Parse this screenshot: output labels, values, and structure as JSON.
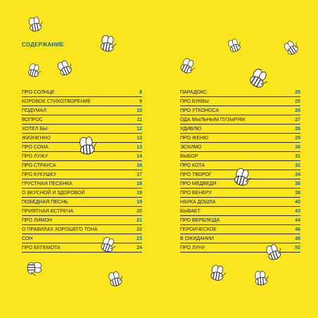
{
  "heading": "СОДЕРЖАНИЕ",
  "colors": {
    "background": "#fbe51f",
    "accent": "#1a6b80",
    "text": "#222222"
  },
  "toc_left": [
    {
      "title": "ПРО СОЛНЦЕ",
      "page": "8"
    },
    {
      "title": "КОРОВОЕ СТИХОТВОРЕНИЕ",
      "page": "9"
    },
    {
      "title": "ПОДУМАЛ",
      "page": "10"
    },
    {
      "title": "ВОПРОС",
      "page": "11"
    },
    {
      "title": "ХОТЕЛ БЫ",
      "page": "12"
    },
    {
      "title": "ЖИЗНЕННО",
      "page": "13"
    },
    {
      "title": "ПРО СОМА",
      "page": "13"
    },
    {
      "title": "ПРО ЛУЖУ",
      "page": "14"
    },
    {
      "title": "ПРО СТРАУСА",
      "page": "16"
    },
    {
      "title": "ПРО КУКУШКУ",
      "page": "17"
    },
    {
      "title": "ГРУСТНАЯ ПЕСЕНКА",
      "page": "18"
    },
    {
      "title": "О ВКУСНОЙ И ЗДОРОВОЙ",
      "page": "19"
    },
    {
      "title": "ПОБЕДНАЯ ПЕСНЬ",
      "page": "19"
    },
    {
      "title": "ПРИЯТНАЯ ВСТРЕЧА",
      "page": "20"
    },
    {
      "title": "ПРО ЛИМОН",
      "page": "21"
    },
    {
      "title": "О ПРАВИЛАХ ХОРОШЕГО ТОНА",
      "page": "22"
    },
    {
      "title": "СОН",
      "page": "23"
    },
    {
      "title": "ПРО БЕГЕМОТА",
      "page": "24"
    }
  ],
  "toc_right": [
    {
      "title": "ПАРАДОКС",
      "page": "25"
    },
    {
      "title": "ПРО БУКВЫ",
      "page": "25"
    },
    {
      "title": "ПРО УТКОНОСА",
      "page": "26"
    },
    {
      "title": "ОДА МЫЛЬНЫМ ПУЗЫРЯМ",
      "page": "27"
    },
    {
      "title": "УДИВЛЮ",
      "page": "28"
    },
    {
      "title": "ПРО ЖЕНЮ",
      "page": "29"
    },
    {
      "title": "ЭСКИМО",
      "page": "30"
    },
    {
      "title": "ВЫБОР",
      "page": "31"
    },
    {
      "title": "ПРО КОТА",
      "page": "32"
    },
    {
      "title": "ПРО ТВОРОГ",
      "page": "34"
    },
    {
      "title": "ПРО МЕДВЕДЯ",
      "page": "36"
    },
    {
      "title": "ПРО ВЕНЕРУ",
      "page": "38"
    },
    {
      "title": "НАУКА ДОШЛА",
      "page": "40"
    },
    {
      "title": "БЫВАЕТ",
      "page": "43"
    },
    {
      "title": "ПРО ВЕРБЛЮДА",
      "page": "44"
    },
    {
      "title": "ГЕРОИЧЕСКОЕ",
      "page": "46"
    },
    {
      "title": "В ОЖИДАНИИ",
      "page": "48"
    },
    {
      "title": "ПРО ЛУНУ",
      "page": "50"
    }
  ],
  "decorations": {
    "bee_icon": "bee-icon"
  }
}
